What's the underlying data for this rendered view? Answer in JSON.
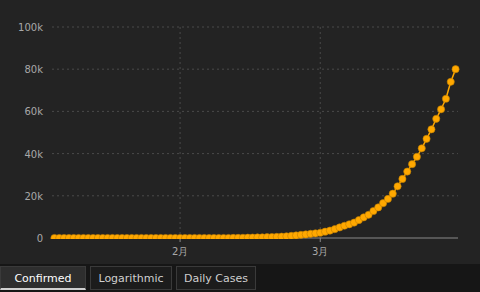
{
  "chart_data": {
    "type": "line",
    "categories": [
      null,
      null,
      null,
      null,
      null,
      null,
      null,
      null,
      null,
      null,
      null,
      null,
      null,
      null,
      null,
      null,
      null,
      null,
      null,
      null,
      null,
      null,
      null,
      null,
      null,
      null,
      "2月",
      null,
      null,
      null,
      null,
      null,
      null,
      null,
      null,
      null,
      null,
      null,
      null,
      null,
      null,
      null,
      null,
      null,
      null,
      null,
      null,
      null,
      null,
      null,
      null,
      null,
      null,
      null,
      null,
      "3月",
      null,
      null,
      null,
      null,
      null,
      null,
      null,
      null,
      null,
      null,
      null,
      null,
      null,
      null,
      null,
      null,
      null,
      null,
      null,
      null,
      null,
      null,
      null,
      null,
      null,
      null,
      null,
      null
    ],
    "values": [
      0,
      0,
      0,
      0,
      0,
      0,
      0,
      0,
      0,
      0,
      0,
      0,
      0,
      0,
      0,
      0,
      0,
      0,
      0,
      0,
      0,
      0,
      0,
      0,
      0,
      0,
      0,
      0,
      0,
      0,
      0,
      0,
      0,
      0,
      0,
      0,
      10,
      30,
      60,
      100,
      150,
      200,
      250,
      300,
      400,
      450,
      550,
      650,
      800,
      1000,
      1200,
      1500,
      1700,
      2000,
      2200,
      2500,
      3000,
      3500,
      4200,
      5000,
      5800,
      6500,
      7300,
      8500,
      9800,
      11000,
      12800,
      14500,
      16500,
      18500,
      21000,
      24500,
      28000,
      31500,
      35000,
      38500,
      42500,
      47000,
      51500,
      56500,
      61000,
      66000,
      74000,
      80000
    ],
    "color": "#ffa800",
    "marker": "circle",
    "ylim": [
      0,
      100000
    ],
    "yticks": [
      0,
      {
        "value": 20000,
        "label": "20k"
      },
      {
        "value": 40000,
        "label": "40k"
      },
      {
        "value": 60000,
        "label": "60k"
      },
      {
        "value": 80000,
        "label": "80k"
      },
      {
        "value": 100000,
        "label": "100k"
      }
    ],
    "grid": true
  },
  "tabs": [
    "Confirmed",
    "Logarithmic",
    "Daily Cases"
  ]
}
